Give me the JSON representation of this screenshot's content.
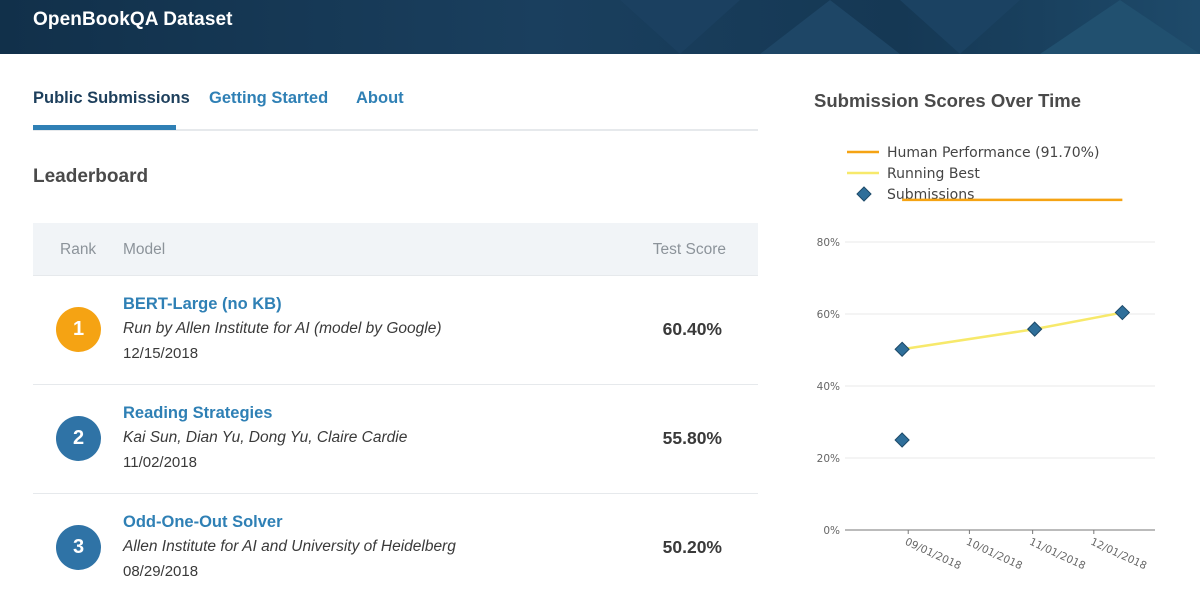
{
  "header": {
    "title": "OpenBookQA Dataset"
  },
  "tabs": [
    {
      "label": "Public Submissions",
      "active": true
    },
    {
      "label": "Getting Started",
      "active": false
    },
    {
      "label": "About",
      "active": false
    }
  ],
  "leaderboard": {
    "title": "Leaderboard",
    "columns": {
      "rank": "Rank",
      "model": "Model",
      "score": "Test Score"
    },
    "rows": [
      {
        "rank": "1",
        "model": "BERT-Large (no KB)",
        "by": "Run by Allen Institute for AI (model by Google)",
        "date": "12/15/2018",
        "score": "60.40%",
        "badge_color": "#f5a313"
      },
      {
        "rank": "2",
        "model": "Reading Strategies",
        "by": "Kai Sun, Dian Yu, Dong Yu, Claire Cardie",
        "date": "11/02/2018",
        "score": "55.80%",
        "badge_color": "#2f73a6"
      },
      {
        "rank": "3",
        "model": "Odd-One-Out Solver",
        "by": "Allen Institute for AI and University of Heidelberg",
        "date": "08/29/2018",
        "score": "50.20%",
        "badge_color": "#2f73a6"
      }
    ]
  },
  "chart": {
    "title": "Submission Scores Over Time"
  },
  "chart_data": {
    "type": "scatter",
    "title": "Submission Scores Over Time",
    "x_ticks": [
      "09/01/2018",
      "10/01/2018",
      "11/01/2018",
      "12/01/2018"
    ],
    "y_ticks": [
      "0%",
      "20%",
      "40%",
      "60%",
      "80%"
    ],
    "ylim": [
      0,
      100
    ],
    "xlim": [
      "2018-08-01",
      "2018-12-31"
    ],
    "legend": [
      "Human Performance (91.70%)",
      "Running Best",
      "Submissions"
    ],
    "legend_position": "top-left",
    "human_performance": 91.7,
    "running_best": [
      {
        "x": "2018-08-29",
        "y": 50.2
      },
      {
        "x": "2018-11-02",
        "y": 55.8
      },
      {
        "x": "2018-12-15",
        "y": 60.4
      }
    ],
    "submissions": [
      {
        "x": "2018-08-29",
        "y": 50.2
      },
      {
        "x": "2018-08-29",
        "y": 25.0
      },
      {
        "x": "2018-11-02",
        "y": 55.8
      },
      {
        "x": "2018-12-15",
        "y": 60.4
      }
    ],
    "colors": {
      "human": "#f5a313",
      "running_best": "#f7e96b",
      "submissions": "#2f6f9a",
      "grid": "#e8e8e8"
    },
    "grid": true
  }
}
